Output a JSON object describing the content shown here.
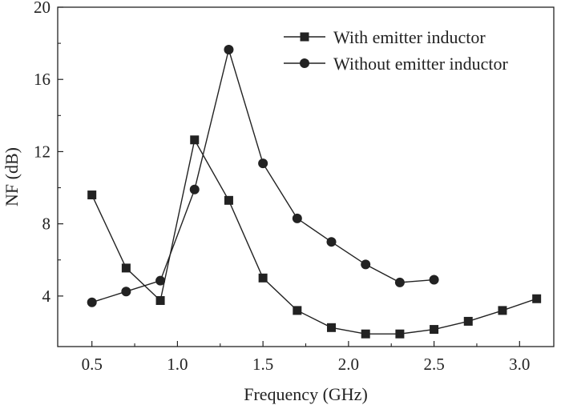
{
  "chart_data": {
    "type": "line",
    "title": "",
    "xlabel": "Frequency (GHz)",
    "ylabel": "NF (dB)",
    "xlim": [
      0.3,
      3.2
    ],
    "ylim": [
      1.2,
      20
    ],
    "xticks": [
      0.5,
      1.0,
      1.5,
      2.0,
      2.5,
      3.0
    ],
    "xtick_labels": [
      "0.5",
      "1.0",
      "1.5",
      "2.0",
      "2.5",
      "3.0"
    ],
    "yticks": [
      4,
      8,
      12,
      16,
      20
    ],
    "ytick_labels": [
      "4",
      "8",
      "12",
      "16",
      "20"
    ],
    "grid": false,
    "legend_position": "top-right",
    "series": [
      {
        "name": "With emitter inductor",
        "marker": "square",
        "color": "#222222",
        "x": [
          0.5,
          0.7,
          0.9,
          1.1,
          1.3,
          1.5,
          1.7,
          1.9,
          2.1,
          2.3,
          2.5,
          2.7,
          2.9,
          3.1
        ],
        "y": [
          9.6,
          5.55,
          3.75,
          12.65,
          9.3,
          5.0,
          3.2,
          2.25,
          1.9,
          1.9,
          2.15,
          2.6,
          3.2,
          3.85
        ]
      },
      {
        "name": "Without emitter inductor",
        "marker": "circle",
        "color": "#222222",
        "x": [
          0.5,
          0.7,
          0.9,
          1.1,
          1.3,
          1.5,
          1.7,
          1.9,
          2.1,
          2.3,
          2.5
        ],
        "y": [
          3.65,
          4.25,
          4.85,
          9.9,
          17.65,
          11.35,
          8.3,
          7.0,
          5.75,
          4.75,
          4.9
        ]
      }
    ]
  }
}
